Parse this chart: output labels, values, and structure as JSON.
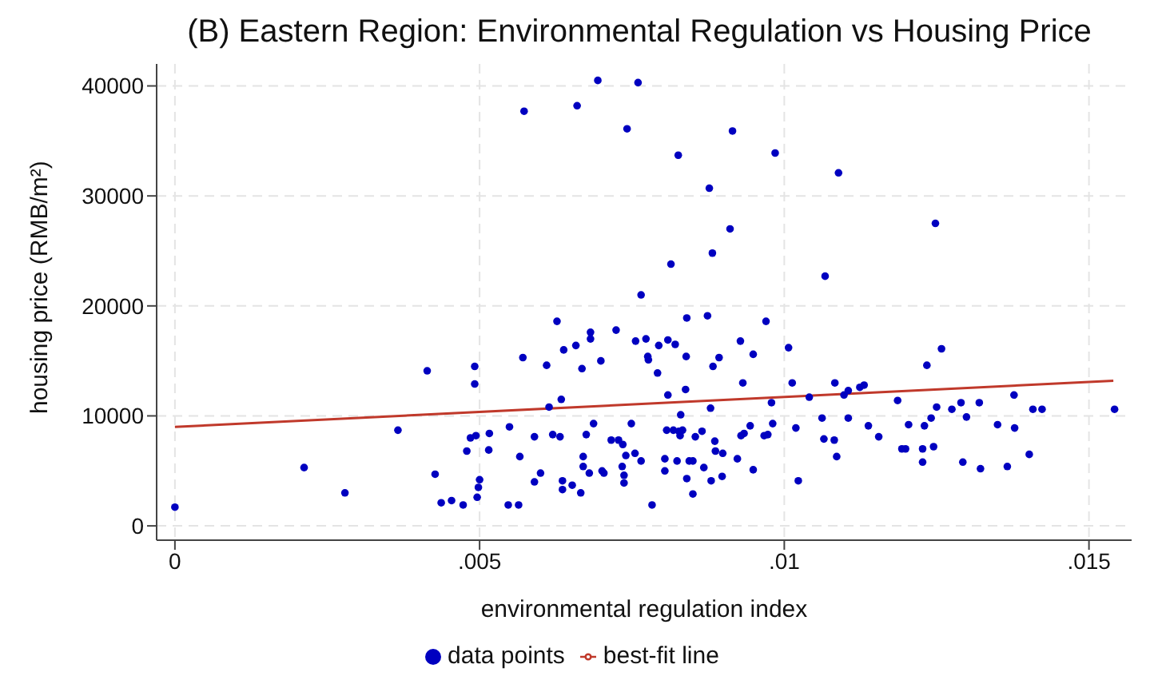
{
  "chart_data": {
    "type": "scatter",
    "title": "(B) Eastern Region: Environmental Regulation vs Housing Price",
    "xlabel": "environmental regulation index",
    "ylabel": "housing price (RMB/m²)",
    "xlim": [
      -0.0003,
      0.0157
    ],
    "xticks": [
      {
        "value": 0,
        "label": "0"
      },
      {
        "value": 0.005,
        "label": ".005"
      },
      {
        "value": 0.01,
        "label": ".01"
      },
      {
        "value": 0.015,
        "label": ".015"
      }
    ],
    "ylim": [
      -1300,
      42000
    ],
    "yticks": [
      0,
      10000,
      20000,
      30000,
      40000
    ],
    "grid": true,
    "legend": "bottom",
    "series": [
      {
        "name": "data points",
        "marker": "circle",
        "color": "#0000c0",
        "x": [
          0,
          0.00212,
          0.00279,
          0.00366,
          0.00414,
          0.00427,
          0.00437,
          0.00454,
          0.00473,
          0.00479,
          0.00485,
          0.00494,
          0.00492,
          0.00492,
          0.005,
          0.00498,
          0.00496,
          0.00516,
          0.00515,
          0.00549,
          0.00547,
          0.00564,
          0.00566,
          0.00571,
          0.00573,
          0.0059,
          0.0059,
          0.006,
          0.0061,
          0.00614,
          0.0062,
          0.00627,
          0.00632,
          0.00634,
          0.00638,
          0.00636,
          0.00636,
          0.00652,
          0.00658,
          0.0066,
          0.00666,
          0.00668,
          0.0067,
          0.0067,
          0.00675,
          0.0068,
          0.00682,
          0.00682,
          0.00687,
          0.00694,
          0.00699,
          0.00701,
          0.00704,
          0.00716,
          0.00724,
          0.00728,
          0.00735,
          0.00734,
          0.00737,
          0.00737,
          0.0074,
          0.00742,
          0.00749,
          0.00755,
          0.0076,
          0.00756,
          0.00765,
          0.00773,
          0.00776,
          0.00777,
          0.00765,
          0.00783,
          0.00792,
          0.00794,
          0.00804,
          0.00804,
          0.00809,
          0.00807,
          0.00809,
          0.00814,
          0.00818,
          0.00821,
          0.00824,
          0.00826,
          0.0083,
          0.00827,
          0.00829,
          0.00833,
          0.00838,
          0.00839,
          0.0084,
          0.0084,
          0.00844,
          0.0085,
          0.0085,
          0.00854,
          0.00865,
          0.00868,
          0.00874,
          0.00877,
          0.00879,
          0.0088,
          0.00882,
          0.00883,
          0.00886,
          0.00887,
          0.00893,
          0.00898,
          0.00899,
          0.00911,
          0.00915,
          0.00923,
          0.00928,
          0.00929,
          0.00932,
          0.00934,
          0.00944,
          0.00949,
          0.00949,
          0.00967,
          0.0097,
          0.00973,
          0.00979,
          0.00981,
          0.00985,
          0.01007,
          0.01013,
          0.01019,
          0.01023,
          0.01041,
          0.01062,
          0.01067,
          0.01065,
          0.01082,
          0.01083,
          0.01086,
          0.01089,
          0.01098,
          0.01105,
          0.01105,
          0.01124,
          0.01131,
          0.01138,
          0.01155,
          0.01186,
          0.01193,
          0.01199,
          0.01204,
          0.01227,
          0.01227,
          0.0123,
          0.01234,
          0.01241,
          0.01245,
          0.01248,
          0.0125,
          0.01258,
          0.01275,
          0.0129,
          0.01293,
          0.01299,
          0.0132,
          0.01322,
          0.0135,
          0.01366,
          0.01377,
          0.01378,
          0.01402,
          0.01408,
          0.01423,
          0.01542
        ],
        "values": [
          1700,
          5300,
          3000,
          8700,
          14100,
          4700,
          2100,
          2300,
          1900,
          6800,
          8000,
          8200,
          14500,
          12900,
          4200,
          3500,
          2600,
          8400,
          6900,
          9000,
          1900,
          1900,
          6300,
          15300,
          37700,
          4000,
          8100,
          4800,
          14600,
          10800,
          8300,
          18600,
          8100,
          11500,
          16000,
          4100,
          3300,
          3700,
          16400,
          38200,
          3000,
          14300,
          6300,
          5400,
          8300,
          4800,
          17600,
          17000,
          9300,
          40500,
          15000,
          5000,
          4800,
          7800,
          17800,
          7800,
          7400,
          5400,
          4600,
          3900,
          6400,
          36100,
          9300,
          6600,
          40300,
          16800,
          21000,
          17000,
          15400,
          15100,
          5900,
          1900,
          13900,
          16400,
          6100,
          5000,
          16900,
          8700,
          11900,
          23800,
          8700,
          16500,
          5900,
          33700,
          10100,
          8600,
          8200,
          8700,
          12400,
          15400,
          4300,
          18900,
          5900,
          5900,
          2900,
          8100,
          8600,
          5300,
          19100,
          30700,
          10700,
          4100,
          24800,
          14500,
          7700,
          6800,
          15300,
          4500,
          6600,
          27000,
          35900,
          6100,
          16800,
          8200,
          13000,
          8400,
          9100,
          15600,
          5100,
          8200,
          18600,
          8300,
          11200,
          9300,
          33900,
          16200,
          13000,
          8900,
          4100,
          11700,
          9800,
          22700,
          7900,
          7800,
          13000,
          6300,
          32100,
          11900,
          9800,
          12300,
          12600,
          12800,
          9100,
          8100,
          11400,
          7000,
          7000,
          9200,
          7000,
          5800,
          9100,
          14600,
          9800,
          7200,
          27500,
          10800,
          16100,
          10600,
          11200,
          5800,
          9900,
          11200,
          5200,
          9200,
          5400,
          11900,
          8900,
          6500,
          10600,
          10600,
          10600
        ]
      },
      {
        "name": "best-fit line",
        "type": "line",
        "color": "#c0392b",
        "x": [
          0,
          0.0154
        ],
        "values": [
          9000,
          13200
        ]
      }
    ]
  }
}
